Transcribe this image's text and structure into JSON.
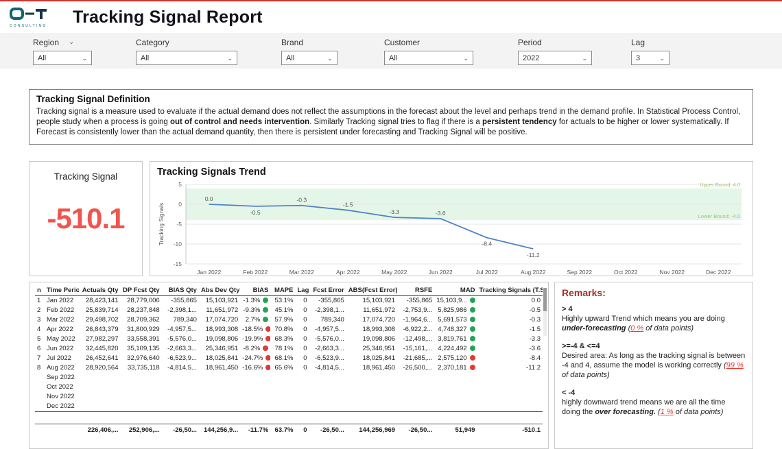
{
  "header": {
    "title": "Tracking Signal Report",
    "logo_sub": "CONSULTING"
  },
  "filters": {
    "items": [
      {
        "id": "region",
        "label": "Region",
        "value": "All",
        "header_chevron": true
      },
      {
        "id": "category",
        "label": "Category",
        "value": "All"
      },
      {
        "id": "brand",
        "label": "Brand",
        "value": "All"
      },
      {
        "id": "customer",
        "label": "Customer",
        "value": "All"
      },
      {
        "id": "period",
        "label": "Period",
        "value": "2022"
      },
      {
        "id": "lag",
        "label": "Lag",
        "value": "3"
      }
    ]
  },
  "definition": {
    "title": "Tracking Signal Definition",
    "t1": "Tracking signal is a measure used to evaluate if the actual demand does not reflect the assumptions in the forecast about the level and perhaps trend in the demand profile. In Statistical Process Control, people study when a process is going ",
    "b1": "out of control and needs intervention",
    "t2": ". Similarly Tracking signal tries to flag if there is a ",
    "b2": "persistent tendency",
    "t3": " for actuals to be higher or lower systematically. If Forecast is consistently lower than the actual demand quantity, then there is persistent under forecasting and Tracking Signal will be positive."
  },
  "card": {
    "title": "Tracking Signal",
    "value": "-510.1",
    "value_color": "#f2544d"
  },
  "chart_data": {
    "type": "line",
    "title": "Tracking Signals Trend",
    "ylabel": "Tracking Signals",
    "x": [
      "Jan 2022",
      "Feb 2022",
      "Mar 2022",
      "Apr 2022",
      "May 2022",
      "Jun 2022",
      "Jul 2022",
      "Aug 2022",
      "Sep 2022",
      "Oct 2022",
      "Nov 2022",
      "Dec 2022"
    ],
    "values": [
      0.0,
      -0.5,
      -0.3,
      -1.5,
      -3.3,
      -3.6,
      -8.4,
      -11.2
    ],
    "labels": [
      "0.0",
      "-0.5",
      "-0.3",
      "-1.5",
      "-3.3",
      "-3.6",
      "-8.4",
      "-11.2"
    ],
    "label_pos": [
      "above",
      "below",
      "above",
      "above",
      "above",
      "above",
      "below",
      "below"
    ],
    "ylim": [
      -15,
      5
    ],
    "yticks": [
      5,
      0,
      -5,
      -10,
      -15
    ],
    "upper_bound": 4.0,
    "lower_bound": -4.0,
    "upper_bound_label": "Upper Bound: 4.0",
    "lower_bound_label": "Lower Bound: -4.0",
    "line_color": "#4f84c4",
    "band_color": "#e4f6e8",
    "bound_label_color": "#9bc46a",
    "legend_position": "none",
    "grid": true
  },
  "table": {
    "headers": [
      "n",
      "Time Period",
      "Actuals Qty",
      "DP Fcst Qty",
      "BIAS Qty",
      "Abs Dev Qty",
      "BIAS",
      "MAPE",
      "Lag",
      "Fcst Error",
      "ABS(Fcst Error)",
      "RSFE",
      "MAD",
      "Tracking Signals (T.S)"
    ],
    "keys": [
      "n",
      "period",
      "actuals",
      "dp_fcst",
      "bias_qty",
      "abs_dev",
      "bias",
      "mape",
      "lag",
      "fcst_error",
      "abs_fcst_error",
      "rsfe",
      "mad",
      "ts"
    ],
    "status_colors": {
      "green": "#23a455",
      "red": "#e23a33"
    },
    "rows": [
      {
        "n": "1",
        "period": "Jan 2022",
        "actuals": "28,423,141",
        "dp_fcst": "28,779,006",
        "bias_qty": "-355,865",
        "abs_dev": "15,103,921",
        "bias": "-1.3%",
        "bias_status": "green",
        "mape": "53.1%",
        "lag": "0",
        "fcst_error": "-355,865",
        "abs_fcst_error": "15,103,921",
        "rsfe": "-355,865",
        "mad": "15,103,9...",
        "mad_status": "green",
        "ts": "0.0"
      },
      {
        "n": "2",
        "period": "Feb 2022",
        "actuals": "25,839,714",
        "dp_fcst": "28,237,848",
        "bias_qty": "-2,398,1...",
        "abs_dev": "11,651,972",
        "bias": "-9.3%",
        "bias_status": "green",
        "mape": "45.1%",
        "lag": "0",
        "fcst_error": "-2,398,1...",
        "abs_fcst_error": "11,651,972",
        "rsfe": "-2,753,9...",
        "mad": "5,825,986",
        "mad_status": "green",
        "ts": "-0.5"
      },
      {
        "n": "3",
        "period": "Mar 2022",
        "actuals": "29,498,702",
        "dp_fcst": "28,709,362",
        "bias_qty": "789,340",
        "abs_dev": "17,074,720",
        "bias": "2.7%",
        "bias_status": "green",
        "mape": "57.9%",
        "lag": "0",
        "fcst_error": "789,340",
        "abs_fcst_error": "17,074,720",
        "rsfe": "-1,964,6...",
        "mad": "5,691,573",
        "mad_status": "green",
        "ts": "-0.3"
      },
      {
        "n": "4",
        "period": "Apr 2022",
        "actuals": "26,843,379",
        "dp_fcst": "31,800,929",
        "bias_qty": "-4,957,5...",
        "abs_dev": "18,993,308",
        "bias": "-18.5%",
        "bias_status": "red",
        "mape": "70.8%",
        "lag": "0",
        "fcst_error": "-4,957,5...",
        "abs_fcst_error": "18,993,308",
        "rsfe": "-6,922,2...",
        "mad": "4,748,327",
        "mad_status": "green",
        "ts": "-1.5"
      },
      {
        "n": "5",
        "period": "May 2022",
        "actuals": "27,982,297",
        "dp_fcst": "33,558,391",
        "bias_qty": "-5,576,0...",
        "abs_dev": "19,098,806",
        "bias": "-19.9%",
        "bias_status": "red",
        "mape": "68.3%",
        "lag": "0",
        "fcst_error": "-5,576,0...",
        "abs_fcst_error": "19,098,806",
        "rsfe": "-12,498,...",
        "mad": "3,819,761",
        "mad_status": "green",
        "ts": "-3.3"
      },
      {
        "n": "6",
        "period": "Jun 2022",
        "actuals": "32,445,820",
        "dp_fcst": "35,109,135",
        "bias_qty": "-2,663,3...",
        "abs_dev": "25,346,951",
        "bias": "-8.2%",
        "bias_status": "red",
        "mape": "78.1%",
        "lag": "0",
        "fcst_error": "-2,663,3...",
        "abs_fcst_error": "25,346,951",
        "rsfe": "-15,161,...",
        "mad": "4,224,492",
        "mad_status": "green",
        "ts": "-3.6"
      },
      {
        "n": "7",
        "period": "Jul 2022",
        "actuals": "26,452,641",
        "dp_fcst": "32,976,640",
        "bias_qty": "-6,523,9...",
        "abs_dev": "18,025,841",
        "bias": "-24.7%",
        "bias_status": "red",
        "mape": "68.1%",
        "lag": "0",
        "fcst_error": "-6,523,9...",
        "abs_fcst_error": "18,025,841",
        "rsfe": "-21,685,...",
        "mad": "2,575,120",
        "mad_status": "red",
        "ts": "-8.4"
      },
      {
        "n": "8",
        "period": "Aug 2022",
        "actuals": "28,920,564",
        "dp_fcst": "33,735,118",
        "bias_qty": "-4,814,5...",
        "abs_dev": "18,961,450",
        "bias": "-16.6%",
        "bias_status": "red",
        "mape": "65.6%",
        "lag": "0",
        "fcst_error": "-4,814,5...",
        "abs_fcst_error": "18,961,450",
        "rsfe": "-26,500,...",
        "mad": "2,370,181",
        "mad_status": "red",
        "ts": "-11.2"
      },
      {
        "period": "Sep 2022"
      },
      {
        "period": "Oct 2022"
      },
      {
        "period": "Nov 2022"
      },
      {
        "period": "Dec 2022"
      }
    ],
    "total": {
      "n": "",
      "period": "",
      "actuals": "226,406,...",
      "dp_fcst": "252,906,...",
      "bias_qty": "-26,50...",
      "abs_dev": "144,256,9...",
      "bias": "-11.7%",
      "mape": "63.7%",
      "lag": "0",
      "fcst_error": "-26,50...",
      "abs_fcst_error": "144,256,969",
      "rsfe": "-26,50...",
      "mad": "51,949",
      "ts": "-510.1"
    }
  },
  "remarks": {
    "title": "Remarks:",
    "r1_head": "> 4",
    "r1_t1": "Highly upward Trend which means you are doing ",
    "r1_b1": "under-forecasting",
    "r1_t2": " (",
    "r1_pct": "0 %",
    "r1_t3": " of data points)",
    "r2_head": ">=-4 & <=4",
    "r2_t1": "Desired area: As long as the tracking signal is between -4 and 4, assume the model is working correctly",
    "r2_t2": " (",
    "r2_pct": "99 %",
    "r2_t3": " of data points)",
    "r3_head": "< -4",
    "r3_t1": "highly downward trend means we are all the time doing the ",
    "r3_b1": "over forecasting.",
    "r3_t2": " (",
    "r3_pct": "1 %",
    "r3_t3": " of data points)"
  }
}
